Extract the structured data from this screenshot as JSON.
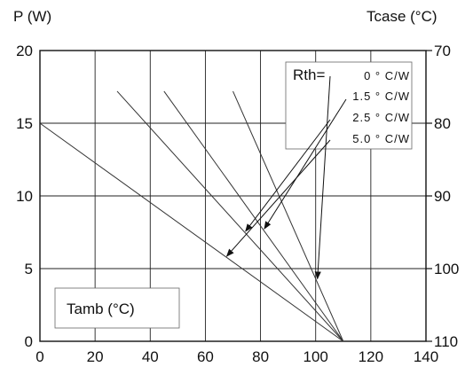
{
  "chart_data": {
    "type": "line",
    "left_axis_title": "P (W)",
    "right_axis_title": "Tcase (°C)",
    "x_title_box": "Tamb (°C)",
    "xlim": [
      0,
      140
    ],
    "ylim": [
      0,
      20
    ],
    "x_ticks": [
      "0",
      "20",
      "40",
      "60",
      "80",
      "100",
      "120",
      "140"
    ],
    "y_ticks": [
      "0",
      "5",
      "10",
      "15",
      "20"
    ],
    "right_ticks": [
      "110",
      "100",
      "90",
      "80",
      "70"
    ],
    "legend_title": "Rth=",
    "series": [
      {
        "name": "0 ° C/W",
        "x": [
          70,
          110
        ],
        "y": [
          17.2,
          0
        ]
      },
      {
        "name": "1.5 ° C/W",
        "x": [
          45,
          110
        ],
        "y": [
          17.2,
          0
        ]
      },
      {
        "name": "2.5 ° C/W",
        "x": [
          28,
          110
        ],
        "y": [
          17.2,
          0
        ]
      },
      {
        "name": "5.0 ° C/W",
        "x": [
          0,
          110
        ],
        "y": [
          15,
          0
        ]
      }
    ],
    "grid": true
  }
}
